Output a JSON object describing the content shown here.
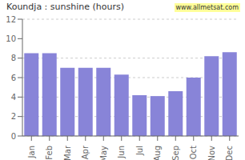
{
  "chart_data": {
    "type": "bar",
    "title": "Koundja : sunshine (hours)",
    "categories": [
      "Jan",
      "Feb",
      "Mar",
      "Apr",
      "May",
      "Jun",
      "Jul",
      "Aug",
      "Sep",
      "Oct",
      "Nov",
      "Dec"
    ],
    "values": [
      8.5,
      8.5,
      7.0,
      7.0,
      7.0,
      6.3,
      4.2,
      4.1,
      4.6,
      6.0,
      8.2,
      8.6
    ],
    "color": "#8884d8",
    "ylim": [
      0,
      12
    ],
    "yticks": [
      0,
      2,
      4,
      6,
      8,
      10,
      12
    ],
    "grid": true,
    "annotations": [
      "www.allmetsat.com"
    ]
  }
}
